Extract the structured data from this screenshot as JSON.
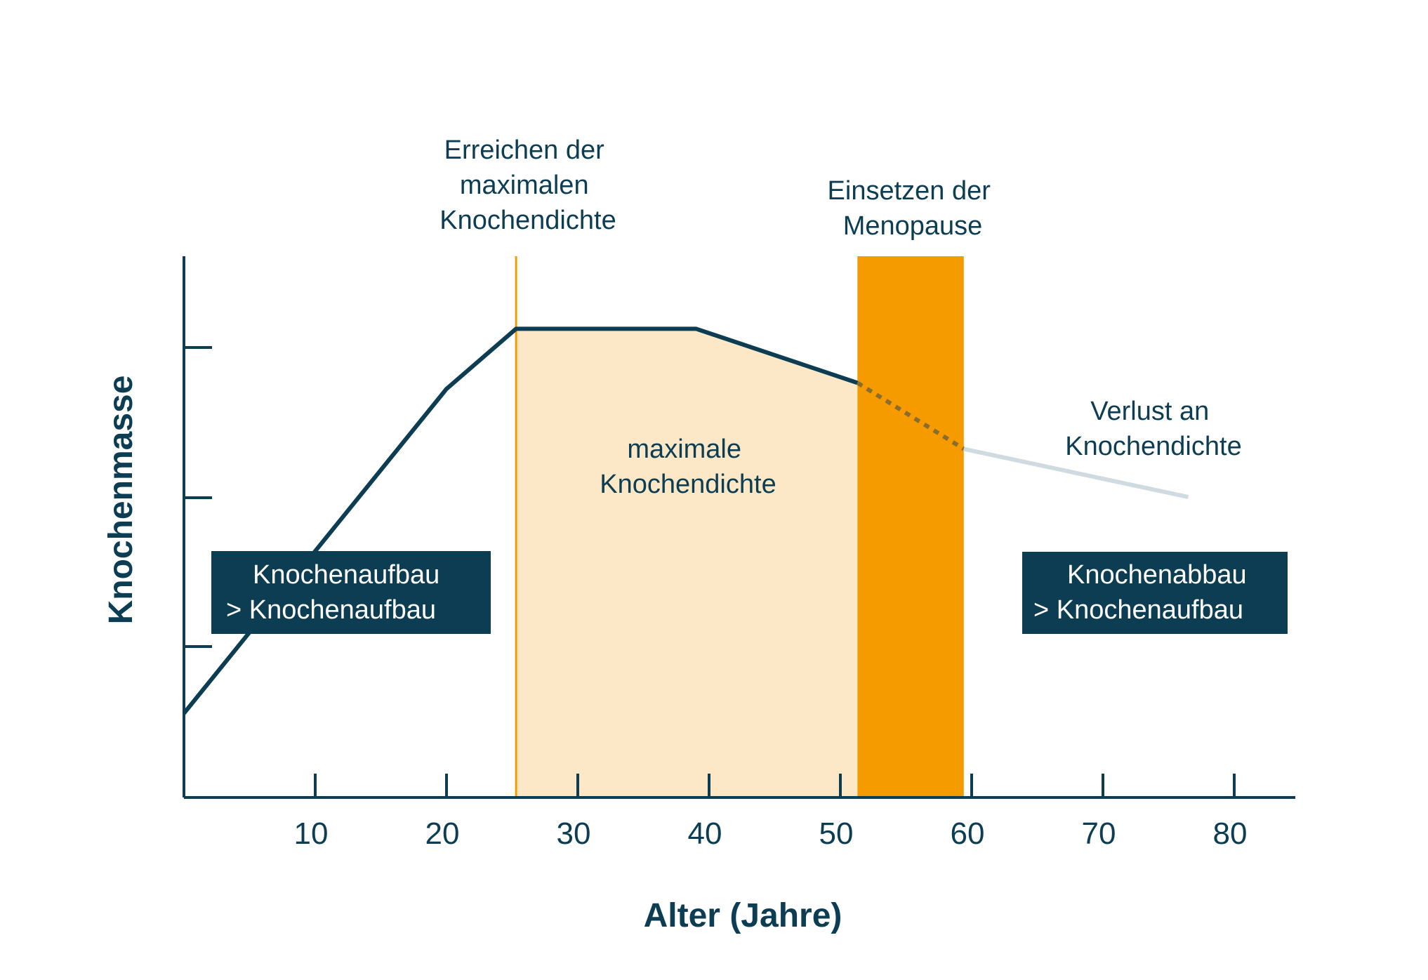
{
  "colors": {
    "navy": "#0c3d53",
    "orange": "#f59b00",
    "peach": "#fce8c6",
    "light_line": "#cfdbe0",
    "white": "#ffffff"
  },
  "chart_data": {
    "type": "line",
    "xlabel": "Alter (Jahre)",
    "ylabel": "Knochenmasse",
    "xlim": [
      0,
      85
    ],
    "x_ticks": [
      10,
      20,
      30,
      40,
      50,
      60,
      70,
      80
    ],
    "y_tick_count": 3,
    "series": [
      {
        "style": "solid",
        "points": [
          [
            0,
            0.14
          ],
          [
            20,
            0.68
          ],
          [
            25.3,
            0.78
          ],
          [
            39,
            0.78
          ],
          [
            51.3,
            0.69
          ]
        ]
      },
      {
        "style": "dotted",
        "points": [
          [
            51.3,
            0.69
          ],
          [
            59.4,
            0.58
          ]
        ]
      },
      {
        "style": "light",
        "points": [
          [
            59.4,
            0.58
          ],
          [
            76.5,
            0.5
          ]
        ]
      }
    ],
    "regions": [
      {
        "name": "peak-density",
        "x": [
          25.3,
          51.3
        ],
        "fill": "peach"
      },
      {
        "name": "menopause",
        "x": [
          51.3,
          59.4
        ],
        "fill": "orange"
      }
    ],
    "markers": [
      {
        "name": "peak-marker",
        "x": 25.3
      }
    ],
    "annotations": {
      "peak_reached": [
        "Erreichen der",
        "maximalen",
        "Knochendichte"
      ],
      "menopause": [
        "Einsetzen der",
        "Menopause"
      ],
      "peak_density": [
        "maximale",
        "Knochendichte"
      ],
      "loss": [
        "Verlust an",
        "Knochendichte"
      ]
    },
    "boxes": {
      "left": [
        "Knochenaufbau",
        "> Knochenaufbau"
      ],
      "right": [
        "Knochenabbau",
        "> Knochenaufbau"
      ]
    }
  }
}
